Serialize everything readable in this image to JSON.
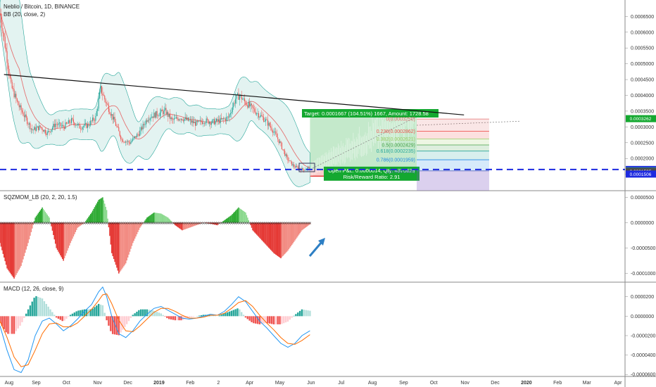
{
  "header": {
    "title": "Neblio / Bitcoin, 1D, BINANCE",
    "indicator_bb": "BB (20, close, 2)",
    "indicator_sqz": "SQZMOM_LB (20, 2, 20, 1.5)",
    "indicator_macd": "MACD (12, 26, close, 9)"
  },
  "colors": {
    "bull": "#26a69a",
    "bear": "#ef5350",
    "bb_fill": "#e0f2ef",
    "bb_line": "#26a69a",
    "ma": "#e57373",
    "dash_line": "#1e2be0",
    "macd": "#2196f3",
    "signal": "#ff6d00",
    "target": "#14a830",
    "stop": "#e53935"
  },
  "chart_data": [
    {
      "type": "line",
      "title": "Neblio / Bitcoin, 1D, BINANCE",
      "x_ticks": [
        "Aug",
        "Sep",
        "Oct",
        "Nov",
        "Dec",
        "2019",
        "Feb",
        "2",
        "Apr",
        "May",
        "Jun",
        "Jul",
        "Aug",
        "Sep",
        "Oct",
        "Nov",
        "Dec",
        "2020",
        "Feb",
        "Mar",
        "Apr"
      ],
      "y_ticks": [
        "0.0007000",
        "0.0006500",
        "0.0006000",
        "0.0005500",
        "0.0005000",
        "0.0004500",
        "0.0004000",
        "0.0003500",
        "0.0003000",
        "0.0002500",
        "0.0002000",
        "0.0001500",
        "0.0001000"
      ],
      "ylim": [
        9.8e-05,
        0.000702
      ],
      "series": [
        {
          "x": [
            "2018-07-27",
            "2018-08-01",
            "2018-08-07",
            "2018-08-14",
            "2018-08-21",
            "2018-08-28",
            "2018-09-05",
            "2018-09-12",
            "2018-09-20",
            "2018-09-28",
            "2018-10-06",
            "2018-10-14",
            "2018-10-22",
            "2018-10-30",
            "2018-11-04",
            "2018-11-09",
            "2018-11-16",
            "2018-11-25",
            "2018-12-03",
            "2018-12-12",
            "2018-12-21",
            "2018-12-29",
            "2019-01-07",
            "2019-01-14",
            "2019-01-22",
            "2019-01-30",
            "2019-02-07",
            "2019-02-15",
            "2019-02-23",
            "2019-03-03",
            "2019-03-11",
            "2019-03-18",
            "2019-03-22",
            "2019-03-27",
            "2019-04-03",
            "2019-04-10",
            "2019-04-17",
            "2019-04-24",
            "2019-05-01",
            "2019-05-08",
            "2019-05-15",
            "2019-05-20",
            "2019-05-24",
            "2019-05-28",
            "2019-05-31"
          ],
          "values": [
            0.00066,
            0.00056,
            0.00043,
            0.00037,
            0.00033,
            0.00029,
            0.0003,
            0.00028,
            0.00031,
            0.0003,
            0.00032,
            0.0003,
            0.000305,
            0.00033,
            0.00042,
            0.00038,
            0.00033,
            0.00026,
            0.00025,
            0.00028,
            0.00033,
            0.00034,
            0.00035,
            0.00032,
            0.00033,
            0.00032,
            0.00031,
            0.00032,
            0.000315,
            0.00032,
            0.00033,
            0.00039,
            0.0004,
            0.00038,
            0.00036,
            0.00034,
            0.00032,
            0.00029,
            0.00025,
            0.0002,
            0.000175,
            0.000168,
            0.000165,
            0.000168,
            0.000172
          ]
        }
      ],
      "trendline": {
        "x": [
          "2018-07-31",
          "2019-10-31"
        ],
        "values": [
          0.000466,
          0.000338
        ]
      },
      "horizontal_line": 0.0001652,
      "price_labels": [
        {
          "text": "0.0003262",
          "value": 0.0003262,
          "color": "#14a830"
        },
        {
          "text": "0.0001652",
          "value": 0.0001652,
          "color": "#1e2be0"
        },
        {
          "text": "0.0001609",
          "value": 0.0001609,
          "color": "#26a69a"
        },
        {
          "text": "0.0001595",
          "value": 0.0001595,
          "color": "#4a4a4a"
        },
        {
          "text": "0.0001506",
          "value": 0.0001506,
          "color": "#1e2be0"
        }
      ],
      "position_tool": {
        "target_label": "Target: 0.0001667 (104.51%) 1667, Amount: 1728.58",
        "open_label": "Open P&L: 0.0000014, Qty: 4370629",
        "ratio_label": "Risk/Reward Ratio: 2.91",
        "entry": 0.0001652,
        "target": 0.000332,
        "stop": 0.000144,
        "x": [
          "2019-05-31",
          "2019-09-14"
        ]
      },
      "fibonacci": {
        "x": [
          "2019-09-14",
          "2019-11-25"
        ],
        "levels": [
          {
            "ratio": "0",
            "price": "0.0003250",
            "value": 0.000325,
            "color": "#e57373"
          },
          {
            "ratio": "0.236",
            "price": "0.0002862",
            "value": 0.0002862,
            "color": "#ef5350"
          },
          {
            "ratio": "0.382",
            "price": "0.0002621",
            "value": 0.0002621,
            "color": "#9ccc65"
          },
          {
            "ratio": "0.5",
            "price": "0.0002429",
            "value": 0.0002429,
            "color": "#43a047"
          },
          {
            "ratio": "0.618",
            "price": "0.0002235",
            "value": 0.0002235,
            "color": "#26a69a"
          },
          {
            "ratio": "0.786",
            "price": "0.0001959",
            "value": 0.0001959,
            "color": "#1e88e5"
          },
          {
            "ratio": "1",
            "price": "0.0001608",
            "value": 0.0001608,
            "color": "#5c6bc0"
          }
        ]
      }
    },
    {
      "type": "bar",
      "title": "SQZMOM_LB (20, 2, 20, 1.5)",
      "y_ticks": [
        "0.0000500",
        "0.0000000",
        "-0.0000500",
        "-0.0001000"
      ],
      "ylim": [
        -0.000117,
        6.3e-05
      ],
      "series": [
        {
          "x": [
            "2018-07-27",
            "2018-08-03",
            "2018-08-10",
            "2018-08-17",
            "2018-08-24",
            "2018-08-31",
            "2018-09-07",
            "2018-09-14",
            "2018-09-21",
            "2018-09-28",
            "2018-10-05",
            "2018-10-12",
            "2018-10-19",
            "2018-10-26",
            "2018-11-02",
            "2018-11-06",
            "2018-11-10",
            "2018-11-15",
            "2018-11-22",
            "2018-11-29",
            "2018-12-06",
            "2018-12-13",
            "2018-12-20",
            "2018-12-27",
            "2019-01-03",
            "2019-01-10",
            "2019-01-17",
            "2019-01-24",
            "2019-01-31",
            "2019-02-07",
            "2019-02-14",
            "2019-02-21",
            "2019-02-28",
            "2019-03-07",
            "2019-03-14",
            "2019-03-21",
            "2019-03-28",
            "2019-04-04",
            "2019-04-11",
            "2019-04-18",
            "2019-04-25",
            "2019-05-02",
            "2019-05-09",
            "2019-05-16",
            "2019-05-23",
            "2019-05-31"
          ],
          "values": [
            -4e-05,
            -9e-05,
            -0.00011,
            -8.5e-05,
            -4e-05,
            1e-05,
            3e-05,
            1e-05,
            -5e-05,
            -7.5e-05,
            -4e-05,
            -1e-05,
            0.0,
            2e-05,
            4.5e-05,
            5e-05,
            2.5e-05,
            -6e-05,
            -0.0001,
            -8e-05,
            -4e-05,
            -1e-05,
            1e-05,
            2e-05,
            1.8e-05,
            1e-05,
            -5e-06,
            -1.5e-05,
            -1e-05,
            -5e-06,
            0.0,
            -2e-06,
            -5e-06,
            5e-06,
            1.5e-05,
            3e-05,
            2e-05,
            -1.5e-05,
            -3e-05,
            -4.5e-05,
            -6e-05,
            -7e-05,
            -5.5e-05,
            -3.5e-05,
            -1.5e-05,
            -3e-06
          ]
        }
      ]
    },
    {
      "type": "line",
      "title": "MACD (12, 26, close, 9)",
      "y_ticks": [
        "0.0000200",
        "0.0000000",
        "-0.0000200",
        "-0.0000400",
        "-0.0000600"
      ],
      "ylim": [
        -6.2e-05,
        3.5e-05
      ],
      "series": [
        {
          "name": "MACD",
          "x": [
            "2018-07-27",
            "2018-08-03",
            "2018-08-10",
            "2018-08-17",
            "2018-08-24",
            "2018-08-31",
            "2018-09-07",
            "2018-09-14",
            "2018-09-21",
            "2018-09-28",
            "2018-10-05",
            "2018-10-12",
            "2018-10-19",
            "2018-10-26",
            "2018-11-02",
            "2018-11-06",
            "2018-11-10",
            "2018-11-15",
            "2018-11-22",
            "2018-11-29",
            "2018-12-06",
            "2018-12-13",
            "2018-12-20",
            "2018-12-27",
            "2019-01-03",
            "2019-01-10",
            "2019-01-17",
            "2019-01-24",
            "2019-01-31",
            "2019-02-07",
            "2019-02-14",
            "2019-02-21",
            "2019-02-28",
            "2019-03-07",
            "2019-03-14",
            "2019-03-21",
            "2019-03-28",
            "2019-04-04",
            "2019-04-11",
            "2019-04-18",
            "2019-04-25",
            "2019-05-02",
            "2019-05-09",
            "2019-05-16",
            "2019-05-23",
            "2019-05-31"
          ],
          "values": [
            -1e-05,
            -3.5e-05,
            -5.5e-05,
            -5.8e-05,
            -4.5e-05,
            -2e-05,
            -5e-06,
            -2e-06,
            -8e-06,
            -1.5e-05,
            -1e-05,
            -3e-06,
            5e-06,
            1.2e-05,
            2.5e-05,
            3e-05,
            2e-05,
            0.0,
            -1.8e-05,
            -2.2e-05,
            -1.5e-05,
            -5e-06,
            2e-06,
            8e-06,
            1e-05,
            6e-06,
            2e-06,
            -2e-06,
            -3e-06,
            -2e-06,
            0.0,
            2e-06,
            1e-06,
            5e-06,
            1.2e-05,
            2e-05,
            1.5e-05,
            5e-06,
            -5e-06,
            -1.2e-05,
            -2e-05,
            -2.8e-05,
            -3.2e-05,
            -2.8e-05,
            -2e-05,
            -1.5e-05
          ]
        },
        {
          "name": "Signal",
          "x": [
            "2018-07-27",
            "2018-08-03",
            "2018-08-10",
            "2018-08-17",
            "2018-08-24",
            "2018-08-31",
            "2018-09-07",
            "2018-09-14",
            "2018-09-21",
            "2018-09-28",
            "2018-10-05",
            "2018-10-12",
            "2018-10-19",
            "2018-10-26",
            "2018-11-02",
            "2018-11-06",
            "2018-11-10",
            "2018-11-15",
            "2018-11-22",
            "2018-11-29",
            "2018-12-06",
            "2018-12-13",
            "2018-12-20",
            "2018-12-27",
            "2019-01-03",
            "2019-01-10",
            "2019-01-17",
            "2019-01-24",
            "2019-01-31",
            "2019-02-07",
            "2019-02-14",
            "2019-02-21",
            "2019-02-28",
            "2019-03-07",
            "2019-03-14",
            "2019-03-21",
            "2019-03-28",
            "2019-04-04",
            "2019-04-11",
            "2019-04-18",
            "2019-04-25",
            "2019-05-02",
            "2019-05-09",
            "2019-05-16",
            "2019-05-23",
            "2019-05-31"
          ],
          "values": [
            -5e-06,
            -2.2e-05,
            -4.2e-05,
            -5.2e-05,
            -5e-05,
            -3.5e-05,
            -1.8e-05,
            -8e-06,
            -7e-06,
            -1.1e-05,
            -1.1e-05,
            -7e-06,
            0.0,
            7e-06,
            1.6e-05,
            2.2e-05,
            2.3e-05,
            1.3e-05,
            -4e-06,
            -1.5e-05,
            -1.6e-05,
            -1e-05,
            -3e-06,
            4e-06,
            8e-06,
            8e-06,
            5e-06,
            1e-06,
            -2e-06,
            -2e-06,
            -1e-06,
            1e-06,
            1e-06,
            3e-06,
            8e-06,
            1.4e-05,
            1.6e-05,
            1e-05,
            1e-06,
            -7e-06,
            -1.4e-05,
            -2.2e-05,
            -2.8e-05,
            -2.9e-05,
            -2.5e-05,
            -1.9e-05
          ]
        }
      ]
    }
  ]
}
